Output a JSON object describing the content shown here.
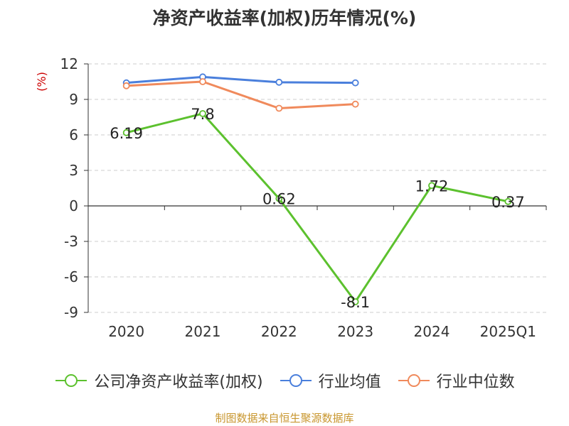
{
  "title": "净资产收益率(加权)历年情况(%)",
  "source": "制图数据来自恒生聚源数据库",
  "chart_data": {
    "type": "line",
    "title": "净资产收益率(加权)历年情况(%)",
    "ylabel": "(%)",
    "xlabel": "",
    "categories": [
      "2020",
      "2021",
      "2022",
      "2023",
      "2024",
      "2025Q1"
    ],
    "ylim": [
      -9,
      12
    ],
    "yticks": [
      12,
      9,
      6,
      3,
      0,
      -3,
      -6,
      -9
    ],
    "grid": true,
    "legend_position": "bottom",
    "series": [
      {
        "name": "公司净资产收益率(加权)",
        "color": "#5cc12e",
        "values": [
          6.19,
          7.8,
          0.62,
          -8.1,
          1.72,
          0.37
        ],
        "labels": [
          "6.19",
          "7.8",
          "0.62",
          "-8.1",
          "1.72",
          "0.37"
        ]
      },
      {
        "name": "行业均值",
        "color": "#4a7fdc",
        "values": [
          10.4,
          10.9,
          10.45,
          10.4,
          null,
          null
        ]
      },
      {
        "name": "行业中位数",
        "color": "#f08a5c",
        "values": [
          10.15,
          10.5,
          8.25,
          8.6,
          null,
          null
        ]
      }
    ]
  }
}
